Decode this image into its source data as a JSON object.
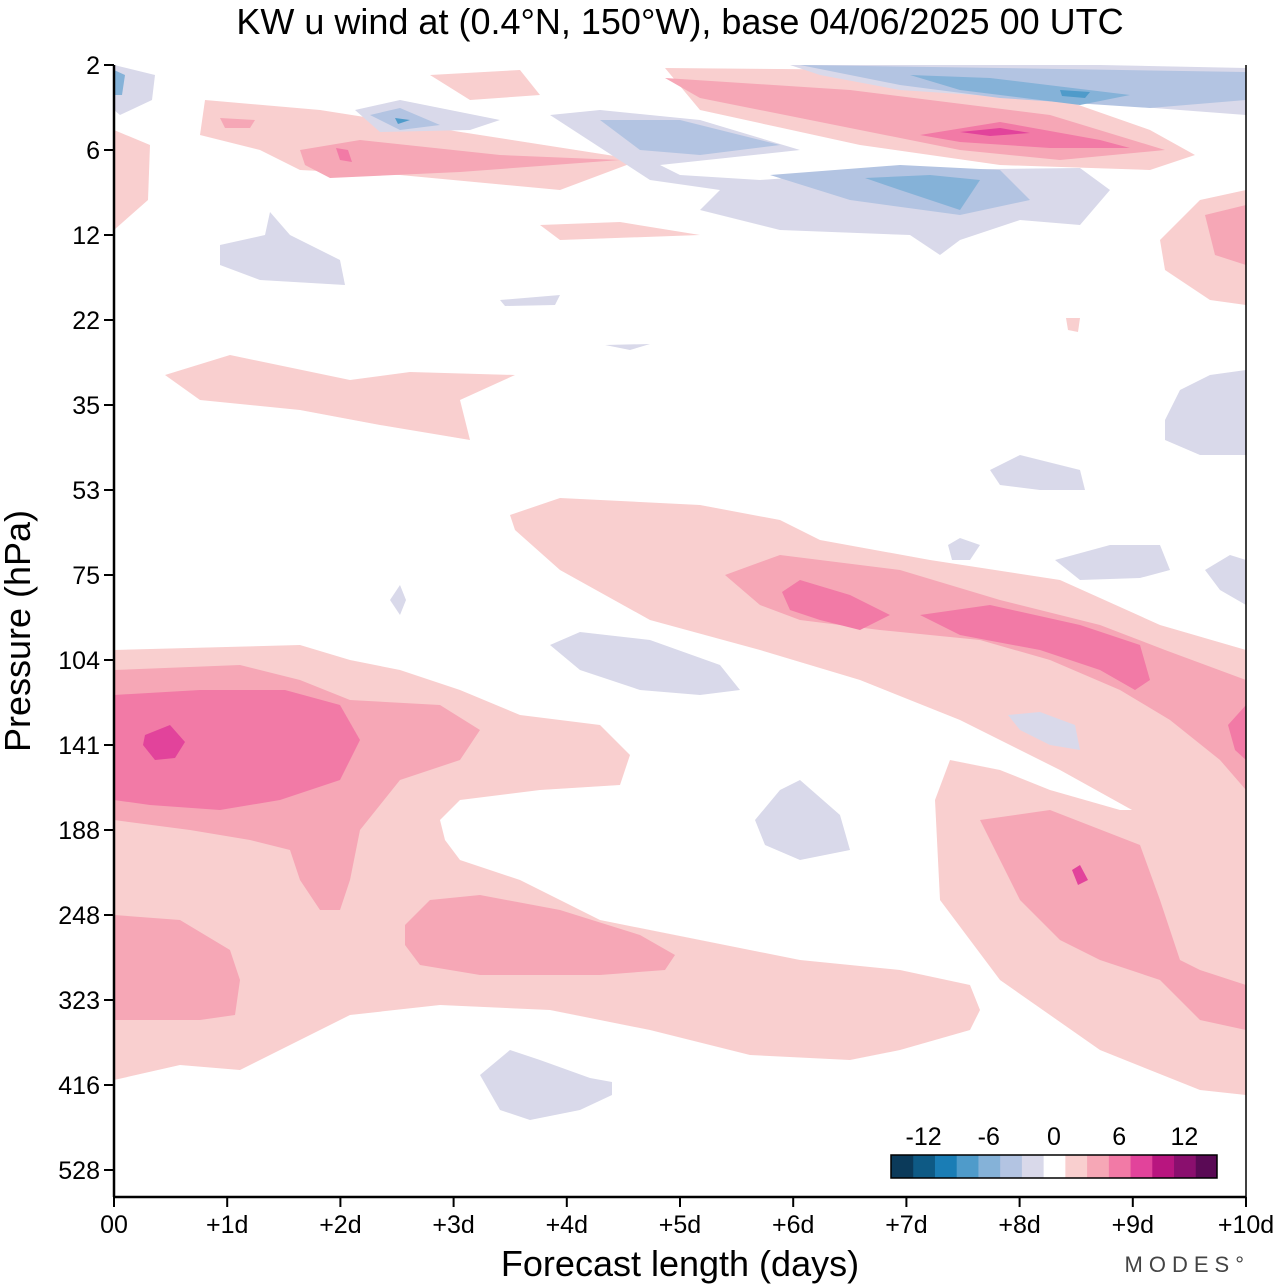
{
  "chart_data": {
    "type": "heatmap",
    "title": "KW u wind at (0.4°N, 150°W),  base 04/06/2025  00 UTC",
    "xlabel": "Forecast length (days)",
    "ylabel": "Pressure (hPa)",
    "x_ticks": [
      "00",
      "+1d",
      "+2d",
      "+3d",
      "+4d",
      "+5d",
      "+6d",
      "+7d",
      "+8d",
      "+9d",
      "+10d"
    ],
    "y_ticks": [
      "2",
      "6",
      "12",
      "22",
      "35",
      "53",
      "75",
      "104",
      "141",
      "188",
      "248",
      "323",
      "416",
      "528"
    ],
    "xlim": [
      0,
      10
    ],
    "y_axis_scale": "log-pressure, 2 hPa at top",
    "colorbar": {
      "labels": [
        "-12",
        "-6",
        "0",
        "6",
        "12"
      ],
      "colors": [
        "#0b3a5a",
        "#0e5a85",
        "#1a7db5",
        "#4f9bca",
        "#85b2d8",
        "#b3c4e2",
        "#d9d9ea",
        "#ffffff",
        "#f9cfcf",
        "#f6a7b6",
        "#f27aa6",
        "#e2439b",
        "#b8157f",
        "#8a0f6e",
        "#5a0a55"
      ]
    },
    "contour_levels": {
      "neg3": "#85b2d8",
      "neg2": "#b3c4e2",
      "neg1": "#d9d9ea",
      "pos1": "#f9cfcf",
      "pos2": "#f6a7b6",
      "pos3": "#f27aa6",
      "pos4": "#e2439b"
    },
    "features": [
      {
        "sign": "positive",
        "desc": "strong jet",
        "x_days": [
          0,
          2.2
        ],
        "p_hPa": [
          104,
          188
        ],
        "max_level": 4,
        "peak_x": 0.5,
        "peak_p": 141
      },
      {
        "sign": "positive",
        "desc": "lower band",
        "x_days": [
          0,
          7.7
        ],
        "p_hPa": [
          188,
          416
        ],
        "max_level": 2
      },
      {
        "sign": "positive",
        "desc": "descending band",
        "x_days": [
          3.5,
          10
        ],
        "p_hPa": [
          53,
          188
        ],
        "max_level": 3
      },
      {
        "sign": "positive",
        "desc": "lower right",
        "x_days": [
          7.3,
          10
        ],
        "p_hPa": [
          141,
          416
        ],
        "max_level": 4,
        "peak_x": 8.5,
        "peak_p": 220
      },
      {
        "sign": "negative",
        "desc": "upper easterly",
        "x_days": [
          4.5,
          10
        ],
        "p_hPa": [
          2,
          12
        ],
        "max_level": 3
      },
      {
        "sign": "positive",
        "desc": "upper westerly",
        "x_days": [
          4.8,
          9.5
        ],
        "p_hPa": [
          2,
          6
        ],
        "max_level": 4
      }
    ]
  },
  "branding": {
    "logo": "MODES°"
  }
}
